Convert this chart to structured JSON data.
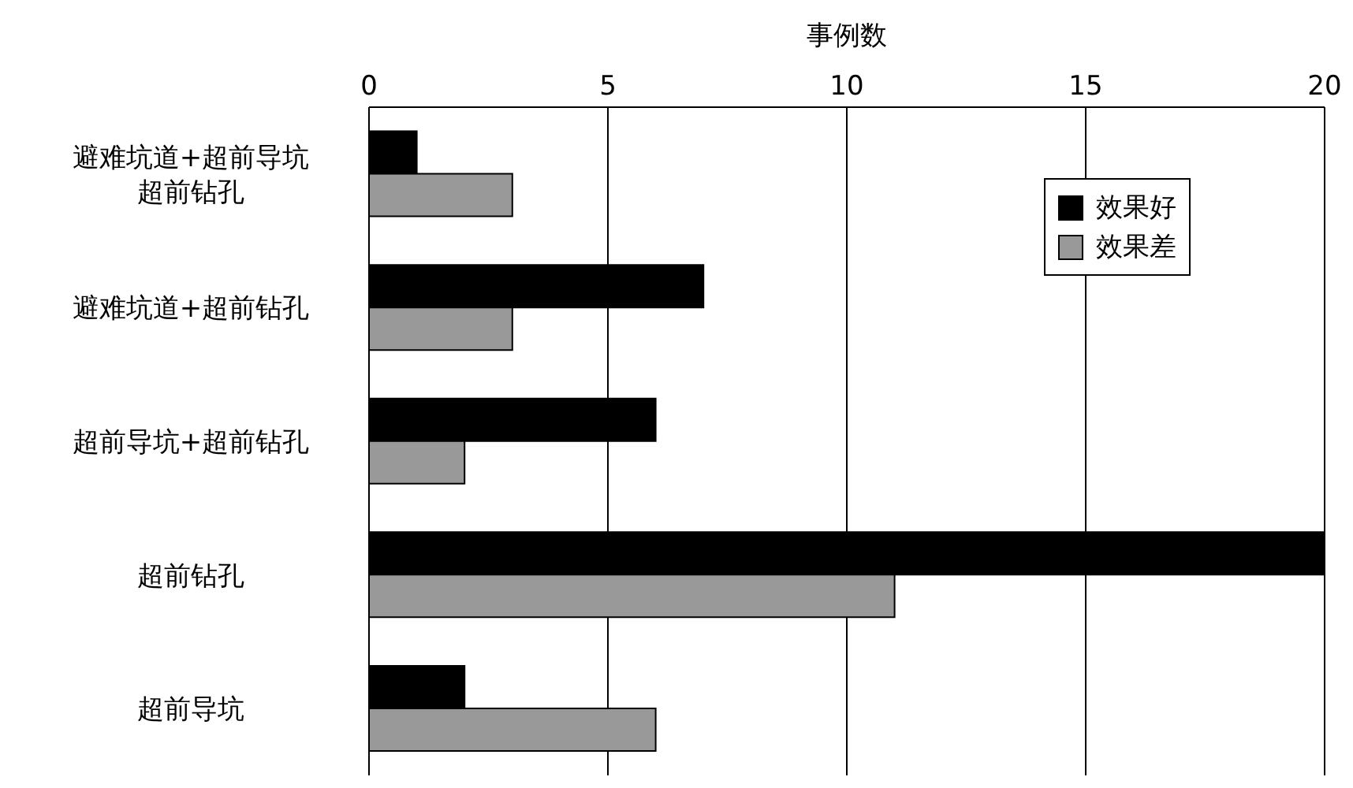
{
  "chart_data": {
    "type": "bar",
    "orientation": "horizontal",
    "xlabel": "事例数",
    "categories": [
      "避难坑道+超前导坑超前钻孔",
      "避难坑道+超前钻孔",
      "超前导坑+超前钻孔",
      "超前钻孔",
      "超前导坑"
    ],
    "series": [
      {
        "name": "效果好",
        "color": "#000000",
        "values": [
          1,
          7,
          6,
          20,
          2
        ]
      },
      {
        "name": "效果差",
        "color": "#999999",
        "values": [
          3,
          3,
          2,
          11,
          6
        ]
      }
    ],
    "xlim": [
      0,
      20
    ],
    "xticks": [
      0,
      5,
      10,
      15,
      20
    ],
    "grid": "x",
    "legend": "top right"
  }
}
